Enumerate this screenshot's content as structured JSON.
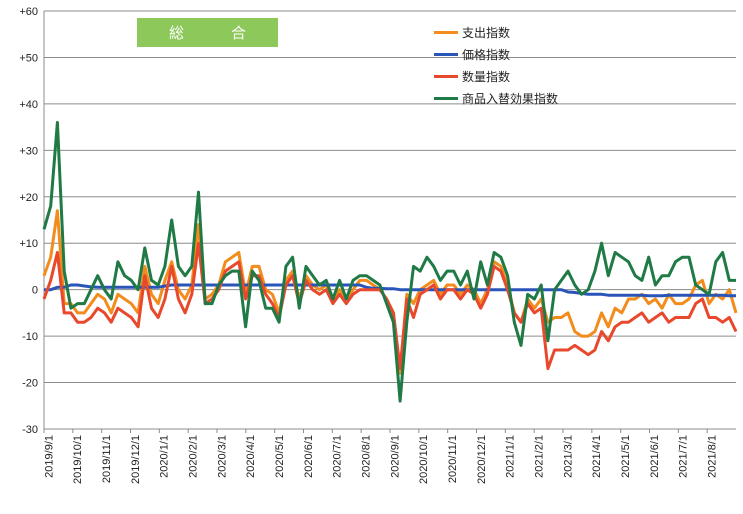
{
  "chart_data": {
    "type": "line",
    "title": "総　合",
    "ylim": [
      -30,
      60
    ],
    "yticks": [
      "+60",
      "+50",
      "+40",
      "+30",
      "+20",
      "+10",
      "0",
      "-10",
      "-20",
      "-30"
    ],
    "xtick_labels": [
      "2019/9/1",
      "2019/10/1",
      "2019/11/1",
      "2019/12/1",
      "2020/1/1",
      "2020/2/1",
      "2020/3/1",
      "2020/4/1",
      "2020/5/1",
      "2020/6/1",
      "2020/7/1",
      "2020/8/1",
      "2020/9/1",
      "2020/10/1",
      "2020/11/1",
      "2020/12/1",
      "2021/1/1",
      "2021/2/1",
      "2021/3/1",
      "2021/4/1",
      "2021/5/1",
      "2021/6/1",
      "2021/7/1",
      "2021/8/1"
    ],
    "grid": true,
    "legend_position": "top-right",
    "series": [
      {
        "name": "支出指数",
        "color": "#f28c1c",
        "values": [
          3,
          7,
          17,
          -3,
          -3,
          -5,
          -5,
          -3,
          -1,
          -2,
          -5,
          -1,
          -2,
          -3,
          -5,
          5,
          -1,
          -3,
          2,
          6,
          0,
          -2,
          1,
          14,
          -2,
          -1,
          1,
          6,
          7,
          8,
          -1,
          5,
          5,
          0,
          -1,
          -5,
          2,
          4,
          -2,
          3,
          1,
          0,
          1,
          -2,
          0,
          -2,
          0,
          2,
          2,
          1,
          0,
          -2,
          -5,
          -18,
          -1,
          -3,
          0,
          1,
          2,
          -1,
          1,
          1,
          -1,
          1,
          0,
          -3,
          0,
          6,
          5,
          1,
          -5,
          -7,
          -2,
          -4,
          -2,
          -7,
          -6,
          -6,
          -5,
          -9,
          -10,
          -10,
          -9,
          -5,
          -8,
          -4,
          -5,
          -2,
          -2,
          -1,
          -3,
          -2,
          -4,
          -1,
          -3,
          -3,
          -2,
          1,
          2,
          -3,
          -1,
          -2,
          0,
          -5
        ]
      },
      {
        "name": "価格指数",
        "color": "#2a55b8",
        "values": [
          0,
          0,
          0.5,
          0.5,
          1,
          1,
          0.8,
          0.6,
          0.5,
          0.5,
          0.5,
          0.5,
          0.5,
          0.5,
          0.5,
          0.5,
          0.5,
          0.5,
          0.8,
          1,
          1,
          1,
          1,
          1,
          1,
          1,
          1,
          1,
          1,
          1,
          1,
          1,
          1,
          1,
          1,
          1,
          1,
          1,
          1,
          1,
          1,
          1,
          1,
          1,
          1,
          1,
          1,
          1,
          0.5,
          0.3,
          0.3,
          0.2,
          0.2,
          0,
          0,
          0,
          0,
          0,
          0,
          0,
          0,
          0,
          0,
          0,
          0,
          0,
          0,
          0,
          0,
          0,
          0,
          0,
          0,
          0,
          0,
          0,
          0,
          0,
          -0.5,
          -0.6,
          -0.8,
          -1,
          -1,
          -1,
          -1.2,
          -1.2,
          -1.2,
          -1.2,
          -1.2,
          -1.2,
          -1.3,
          -1.3,
          -1.3,
          -1.2,
          -1.2,
          -1.2,
          -1.2,
          -1.2,
          -1.2,
          -1.2,
          -1.2,
          -1.2,
          -1.3,
          -1.3
        ]
      },
      {
        "name": "数量指数",
        "color": "#e8482c",
        "values": [
          -2,
          2,
          8,
          -5,
          -5,
          -7,
          -7,
          -6,
          -4,
          -5,
          -7,
          -4,
          -5,
          -6,
          -8,
          3,
          -4,
          -6,
          -2,
          5,
          -2,
          -5,
          -1,
          10,
          -3,
          -2,
          0,
          4,
          5,
          6,
          -2,
          3,
          3,
          -1,
          -3,
          -6,
          1,
          3,
          -3,
          2,
          0,
          -1,
          0,
          -3,
          -1,
          -3,
          -1,
          0,
          0,
          0,
          0,
          -2,
          -5,
          -17,
          -2,
          -6,
          -1,
          0,
          1,
          -2,
          0,
          0,
          -2,
          0,
          -1,
          -4,
          -1,
          5,
          4,
          0,
          -5,
          -7,
          -3,
          -5,
          -4,
          -17,
          -13,
          -13,
          -13,
          -12,
          -13,
          -14,
          -13,
          -9,
          -11,
          -8,
          -7,
          -7,
          -6,
          -5,
          -7,
          -6,
          -5,
          -7,
          -6,
          -6,
          -6,
          -3,
          -2,
          -6,
          -6,
          -7,
          -6,
          -9
        ]
      },
      {
        "name": "商品入替効果指数",
        "color": "#1f7a45",
        "values": [
          13,
          18,
          36,
          4,
          -4,
          -3,
          -3,
          0,
          3,
          0,
          -2,
          6,
          3,
          2,
          0,
          9,
          2,
          1,
          5,
          15,
          5,
          3,
          5,
          21,
          -3,
          -3,
          1,
          3,
          4,
          4,
          -8,
          4,
          2,
          -4,
          -4,
          -7,
          5,
          7,
          -4,
          5,
          3,
          1,
          2,
          -2,
          2,
          -2,
          2,
          3,
          3,
          2,
          1,
          -3,
          -7,
          -24,
          -7,
          5,
          4,
          7,
          5,
          2,
          4,
          4,
          1,
          4,
          -2,
          6,
          1,
          8,
          7,
          3,
          -7,
          -12,
          -1,
          -2,
          1,
          -11,
          0,
          2,
          4,
          1,
          -1,
          0,
          4,
          10,
          3,
          8,
          7,
          6,
          3,
          2,
          7,
          1,
          3,
          3,
          6,
          7,
          7,
          1,
          0,
          -1,
          6,
          8,
          2,
          2
        ]
      }
    ]
  }
}
